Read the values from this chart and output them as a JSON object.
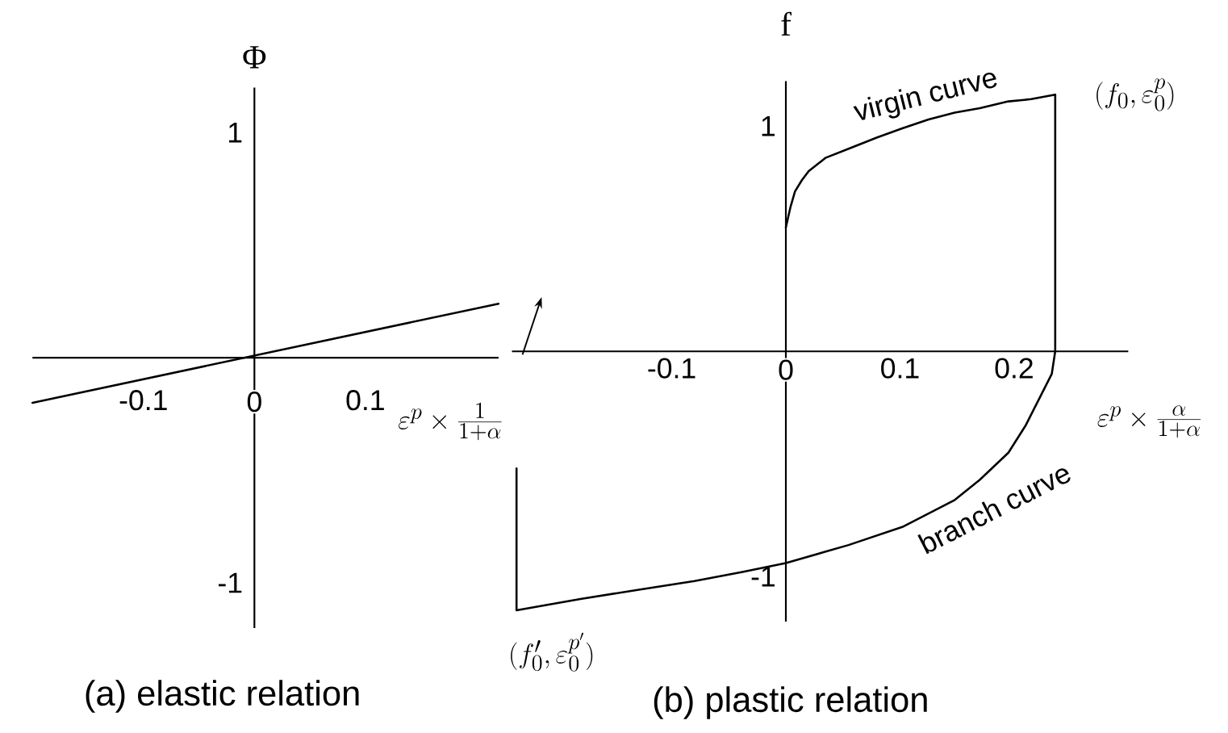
{
  "chart_data": [
    {
      "type": "line",
      "title": "(a) elastic relation",
      "xlabel": "\\varepsilon^{p}\\times\\frac{1}{1+\\alpha}",
      "ylabel": "Φ",
      "x": [
        -0.2,
        0.22
      ],
      "values": [
        -0.2,
        0.24
      ],
      "color": "#000000",
      "xlim": [
        -0.2,
        0.22
      ],
      "ylim": [
        -1.2,
        1.2
      ],
      "xticks": [
        -0.1,
        0,
        0.1
      ],
      "yticks": [
        -1,
        1
      ]
    },
    {
      "type": "line",
      "title": "(b) plastic relation",
      "xlabel": "\\varepsilon^{p}\\times\\frac{\\alpha}{1+\\alpha}",
      "ylabel": "f",
      "xlim": [
        -0.24,
        0.3
      ],
      "ylim": [
        -1.2,
        1.2
      ],
      "xticks": [
        -0.1,
        0,
        0.1,
        0.2
      ],
      "yticks": [
        -1,
        1
      ],
      "series": [
        {
          "name": "virgin curve",
          "color": "#000000",
          "x": [
            0,
            0.004,
            0.008,
            0.014,
            0.02,
            0.035,
            0.055,
            0.08,
            0.102,
            0.125,
            0.148,
            0.17,
            0.195,
            0.215,
            0.236
          ],
          "values": [
            0.55,
            0.64,
            0.71,
            0.76,
            0.8,
            0.86,
            0.9,
            0.95,
            0.99,
            1.03,
            1.06,
            1.08,
            1.11,
            1.12,
            1.14
          ]
        },
        {
          "name": "branch curve",
          "color": "#000000",
          "x": [
            0.236,
            0.236,
            0.233,
            0.222,
            0.21,
            0.195,
            0.17,
            0.148,
            0.125,
            0.102,
            0.055,
            0,
            -0.038,
            -0.08,
            -0.131,
            -0.18,
            -0.236,
            -0.236
          ],
          "values": [
            1.14,
            0,
            -0.1,
            -0.21,
            -0.33,
            -0.45,
            -0.57,
            -0.66,
            -0.72,
            -0.78,
            -0.86,
            -0.94,
            -0.98,
            -1.02,
            -1.06,
            -1.1,
            -1.15,
            -0.52
          ]
        }
      ],
      "annotations": [
        {
          "text": "(f_{0},\\varepsilon_{0}^{p})",
          "x": 0.236,
          "y": 1.14
        },
        {
          "text": "(f'_{0},\\varepsilon_{0}^{p'})",
          "x": -0.236,
          "y": -1.15
        }
      ]
    }
  ]
}
